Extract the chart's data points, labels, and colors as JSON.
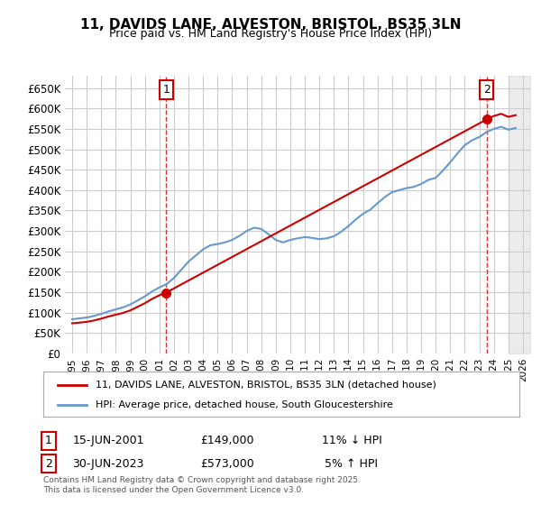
{
  "title": "11, DAVIDS LANE, ALVESTON, BRISTOL, BS35 3LN",
  "subtitle": "Price paid vs. HM Land Registry's House Price Index (HPI)",
  "xlabel": "",
  "ylabel": "",
  "ylim": [
    0,
    680000
  ],
  "yticks": [
    0,
    50000,
    100000,
    150000,
    200000,
    250000,
    300000,
    350000,
    400000,
    450000,
    500000,
    550000,
    600000,
    650000
  ],
  "ytick_labels": [
    "£0",
    "£50K",
    "£100K",
    "£150K",
    "£200K",
    "£250K",
    "£300K",
    "£350K",
    "£400K",
    "£450K",
    "£500K",
    "£550K",
    "£600K",
    "£650K"
  ],
  "red_line_color": "#cc0000",
  "blue_line_color": "#6699cc",
  "background_color": "#ffffff",
  "grid_color": "#cccccc",
  "annotation1": {
    "label": "1",
    "date_index": 6.5,
    "price": 149000,
    "date_str": "15-JUN-2001",
    "price_str": "£149,000",
    "note": "11% ↓ HPI"
  },
  "annotation2": {
    "label": "2",
    "date_index": 28.5,
    "price": 573000,
    "date_str": "30-JUN-2023",
    "price_str": "£573,000",
    "note": "5% ↑ HPI"
  },
  "legend_label_red": "11, DAVIDS LANE, ALVESTON, BRISTOL, BS35 3LN (detached house)",
  "legend_label_blue": "HPI: Average price, detached house, South Gloucestershire",
  "footer": "Contains HM Land Registry data © Crown copyright and database right 2025.\nThis data is licensed under the Open Government Licence v3.0.",
  "xstart_year": 1995,
  "xend_year": 2026,
  "hpi_base_value": 85000,
  "sale1_year": 2001.46,
  "sale1_price": 149000,
  "sale2_year": 2023.5,
  "sale2_price": 573000
}
